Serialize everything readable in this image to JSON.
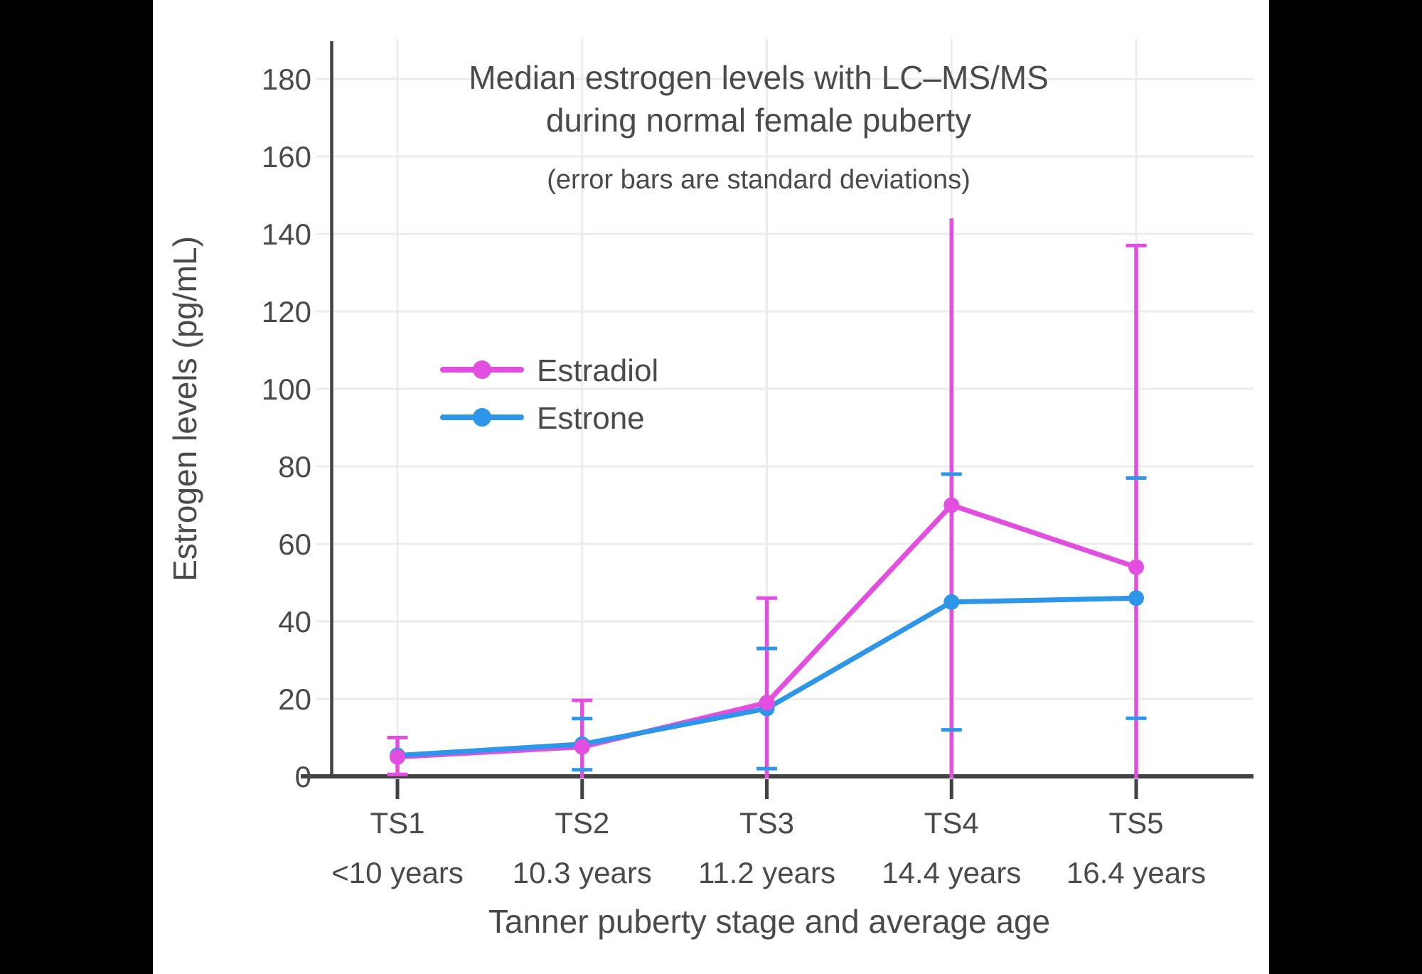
{
  "chart_data": {
    "type": "line",
    "title": "Median estrogen levels with LC–MS/MS during normal female puberty",
    "title_lines": [
      "Median estrogen levels with LC–MS/MS",
      "during normal female puberty"
    ],
    "subtitle": "(error bars are standard deviations)",
    "xlabel": "Tanner puberty stage and average age",
    "ylabel": "Estrogen levels (pg/mL)",
    "categories": [
      "TS1",
      "TS2",
      "TS3",
      "TS4",
      "TS5"
    ],
    "category_ages": [
      "<10 years",
      "10.3 years",
      "11.2 years",
      "14.4 years",
      "16.4 years"
    ],
    "y_ticks": [
      0,
      20,
      40,
      60,
      80,
      100,
      120,
      140,
      160,
      180
    ],
    "ylim": [
      0,
      190
    ],
    "grid": true,
    "legend_position": "inside-left-middle",
    "series": [
      {
        "name": "Estradiol",
        "color": "#e24fe0",
        "values": [
          5,
          7.6,
          19,
          70,
          54
        ],
        "error_hi": [
          10,
          19.6,
          46,
          144,
          137
        ],
        "error_lo": [
          0.5,
          0,
          0,
          0,
          0
        ],
        "cap_hi": [
          true,
          true,
          true,
          false,
          true
        ],
        "cap_lo": [
          true,
          false,
          false,
          false,
          false
        ]
      },
      {
        "name": "Estrone",
        "color": "#2d96e8",
        "values": [
          5.4,
          8.3,
          17.5,
          45,
          46
        ],
        "error_hi": [
          null,
          14.9,
          33,
          78,
          77
        ],
        "error_lo": [
          null,
          1.7,
          2,
          12,
          15
        ],
        "cap_hi": [
          false,
          true,
          true,
          true,
          true
        ],
        "cap_lo": [
          false,
          true,
          true,
          true,
          true
        ]
      }
    ]
  },
  "colors": {
    "background_bars": "#000000",
    "canvas": "#ffffff",
    "grid": "#ececec",
    "axis": "#424242",
    "text": "#4a4a4a",
    "estradiol": "#e24fe0",
    "estrone": "#2d96e8"
  }
}
